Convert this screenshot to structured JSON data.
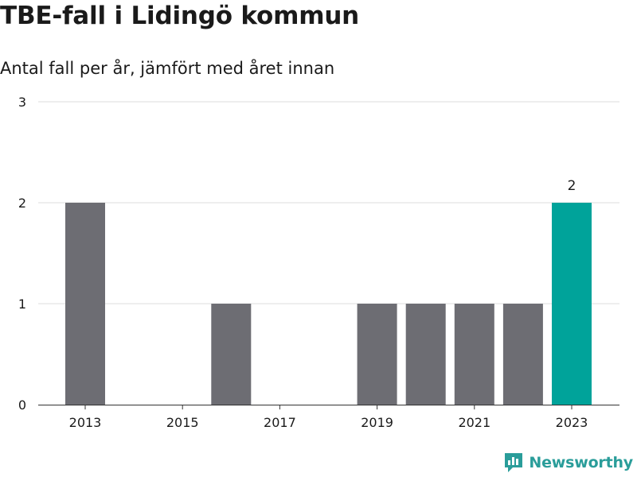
{
  "header": {
    "title": "TBE-fall i Lidingö kommun",
    "subtitle": "Antal fall per år, jämfört med året innan"
  },
  "brand": {
    "name": "Newsworthy",
    "icon": "newsworthy-chart-icon",
    "color": "#2a9d9a"
  },
  "chart_data": {
    "type": "bar",
    "categories": [
      2013,
      2014,
      2015,
      2016,
      2017,
      2018,
      2019,
      2020,
      2021,
      2022,
      2023
    ],
    "values": [
      2,
      0,
      0,
      1,
      0,
      0,
      1,
      1,
      1,
      1,
      2
    ],
    "x_tick_labels": [
      "2013",
      "2015",
      "2017",
      "2019",
      "2021",
      "2023"
    ],
    "y_ticks": [
      0,
      1,
      2,
      3
    ],
    "ylim": [
      0,
      3
    ],
    "highlight_category": 2023,
    "data_labels": [
      {
        "category": 2023,
        "text": "2"
      }
    ],
    "colors": {
      "default": "#6d6d73",
      "highlight": "#00a39a",
      "grid": "#dddddd",
      "axis": "#333333"
    },
    "grid": true
  }
}
